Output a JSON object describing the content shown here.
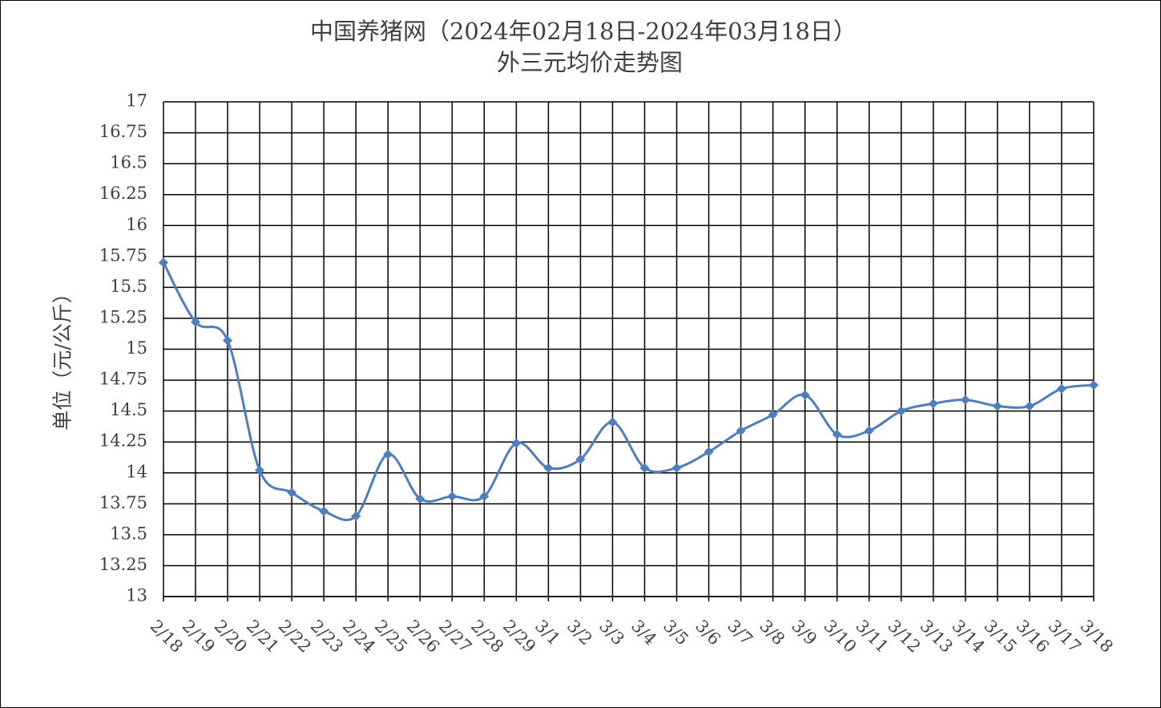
{
  "chart_data": {
    "type": "line",
    "title": "中国养猪网（2024年02月18日-2024年03月18日）",
    "subtitle": "外三元均价走势图",
    "y_label": "单位（元/公斤）",
    "categories": [
      "2/18",
      "2/19",
      "2/20",
      "2/21",
      "2/22",
      "2/23",
      "2/24",
      "2/25",
      "2/26",
      "2/27",
      "2/28",
      "2/29",
      "3/1",
      "3/2",
      "3/3",
      "3/4",
      "3/5",
      "3/6",
      "3/7",
      "3/8",
      "3/9",
      "3/10",
      "3/11",
      "3/12",
      "3/13",
      "3/14",
      "3/15",
      "3/16",
      "3/17",
      "3/18"
    ],
    "series": [
      {
        "color": "#4f7dbd",
        "values": [
          15.7,
          15.22,
          15.07,
          14.02,
          13.84,
          13.69,
          13.65,
          14.15,
          13.79,
          13.81,
          13.81,
          14.24,
          14.04,
          14.11,
          14.41,
          14.04,
          14.04,
          14.17,
          14.34,
          14.47,
          14.63,
          14.31,
          14.34,
          14.5,
          14.56,
          14.59,
          14.54,
          14.54,
          14.68,
          14.71
        ]
      }
    ],
    "ylim": [
      13,
      17
    ],
    "yticks": [
      13,
      13.25,
      13.5,
      13.75,
      14,
      14.25,
      14.5,
      14.75,
      15,
      15.25,
      15.5,
      15.75,
      16,
      16.25,
      16.5,
      16.75,
      17
    ],
    "grid": true,
    "smooth": true
  }
}
